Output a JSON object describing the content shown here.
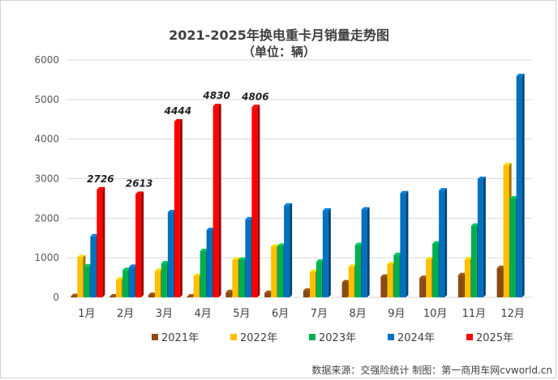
{
  "chart_data": {
    "type": "bar",
    "title": "2021-2025年换电重卡月销量走势图",
    "subtitle": "（单位：辆）",
    "categories": [
      "1月",
      "2月",
      "3月",
      "4月",
      "5月",
      "6月",
      "7月",
      "8月",
      "9月",
      "10月",
      "11月",
      "12月"
    ],
    "ylim": [
      0,
      6000
    ],
    "yticks": [
      0,
      1000,
      2000,
      3000,
      4000,
      5000,
      6000
    ],
    "grid": true,
    "legend_position": "bottom",
    "series": [
      {
        "name": "2021年",
        "color": "#8B4A12",
        "values": [
          30,
          20,
          60,
          20,
          130,
          110,
          170,
          380,
          520,
          490,
          560,
          740
        ]
      },
      {
        "name": "2022年",
        "color": "#FFC000",
        "values": [
          1010,
          450,
          670,
          540,
          950,
          1280,
          640,
          770,
          840,
          960,
          960,
          3340
        ]
      },
      {
        "name": "2023年",
        "color": "#00B050",
        "values": [
          780,
          690,
          860,
          1170,
          950,
          1300,
          900,
          1320,
          1070,
          1360,
          1810,
          2500
        ]
      },
      {
        "name": "2024年",
        "color": "#0070C0",
        "values": [
          1540,
          770,
          2150,
          1700,
          1970,
          2320,
          2190,
          2220,
          2630,
          2700,
          2990,
          5590
        ]
      },
      {
        "name": "2025年",
        "color": "#FF0000",
        "values": [
          2726,
          2613,
          4444,
          4830,
          4806,
          null,
          null,
          null,
          null,
          null,
          null,
          null
        ],
        "labels": [
          "2726",
          "2613",
          "4444",
          "4830",
          "4806"
        ]
      }
    ]
  },
  "source": "数据来源：交强险统计 制图：第一商用车网cvworld.cn"
}
